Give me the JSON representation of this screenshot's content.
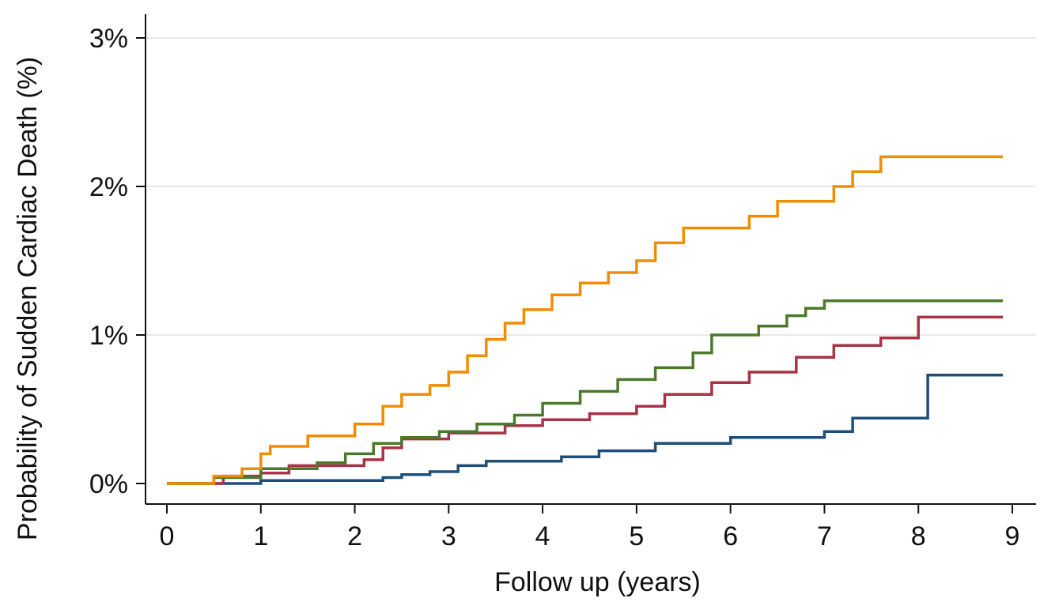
{
  "chart_data": {
    "type": "line",
    "step": true,
    "title": "",
    "xlabel": "Follow up (years)",
    "ylabel": "Probability of Sudden Cardiac Death (%)",
    "xlim": [
      0,
      9
    ],
    "ylim": [
      0,
      3
    ],
    "x_ticks": [
      0,
      1,
      2,
      3,
      4,
      5,
      6,
      7,
      8,
      9
    ],
    "x_tick_labels": [
      "0",
      "1",
      "2",
      "3",
      "4",
      "5",
      "6",
      "7",
      "8",
      "9"
    ],
    "y_ticks": [
      0,
      1,
      2,
      3
    ],
    "y_tick_labels": [
      "0%",
      "1%",
      "2%",
      "3%"
    ],
    "grid": "horizontal",
    "legend": "none",
    "series": [
      {
        "color": "#1f4e79",
        "x": [
          0,
          1.0,
          2.3,
          2.5,
          2.8,
          3.1,
          3.4,
          4.2,
          4.6,
          5.2,
          6.0,
          7.0,
          7.3,
          8.1,
          8.9
        ],
        "y": [
          0,
          0.02,
          0.04,
          0.06,
          0.08,
          0.12,
          0.15,
          0.18,
          0.22,
          0.27,
          0.31,
          0.35,
          0.44,
          0.73,
          0.73
        ]
      },
      {
        "color": "#a83246",
        "x": [
          0,
          0.6,
          1.0,
          1.3,
          2.1,
          2.3,
          2.5,
          3.0,
          3.6,
          4.0,
          4.5,
          5.0,
          5.3,
          5.8,
          6.2,
          6.7,
          7.1,
          7.6,
          8.0,
          8.9
        ],
        "y": [
          0,
          0.05,
          0.07,
          0.12,
          0.16,
          0.24,
          0.3,
          0.34,
          0.39,
          0.43,
          0.47,
          0.52,
          0.6,
          0.68,
          0.75,
          0.85,
          0.93,
          0.98,
          1.12,
          1.12
        ]
      },
      {
        "color": "#4a7a29",
        "x": [
          0,
          0.5,
          1.0,
          1.6,
          1.9,
          2.2,
          2.5,
          2.9,
          3.3,
          3.7,
          4.0,
          4.4,
          4.8,
          5.2,
          5.6,
          5.8,
          6.3,
          6.6,
          6.8,
          7.0,
          8.9
        ],
        "y": [
          0,
          0.04,
          0.1,
          0.14,
          0.2,
          0.27,
          0.31,
          0.35,
          0.4,
          0.46,
          0.54,
          0.62,
          0.7,
          0.78,
          0.88,
          1.0,
          1.06,
          1.13,
          1.18,
          1.23,
          1.23
        ]
      },
      {
        "color": "#f28c00",
        "x": [
          0,
          0.5,
          0.8,
          1.0,
          1.1,
          1.5,
          2.0,
          2.3,
          2.5,
          2.8,
          3.0,
          3.2,
          3.4,
          3.6,
          3.8,
          4.1,
          4.4,
          4.7,
          5.0,
          5.2,
          5.5,
          6.2,
          6.5,
          6.7,
          7.1,
          7.3,
          7.6,
          8.9
        ],
        "y": [
          0,
          0.05,
          0.1,
          0.2,
          0.25,
          0.32,
          0.4,
          0.52,
          0.6,
          0.66,
          0.75,
          0.86,
          0.97,
          1.08,
          1.17,
          1.27,
          1.35,
          1.42,
          1.5,
          1.62,
          1.72,
          1.8,
          1.9,
          1.9,
          2.0,
          2.1,
          2.2,
          2.2
        ]
      }
    ]
  }
}
